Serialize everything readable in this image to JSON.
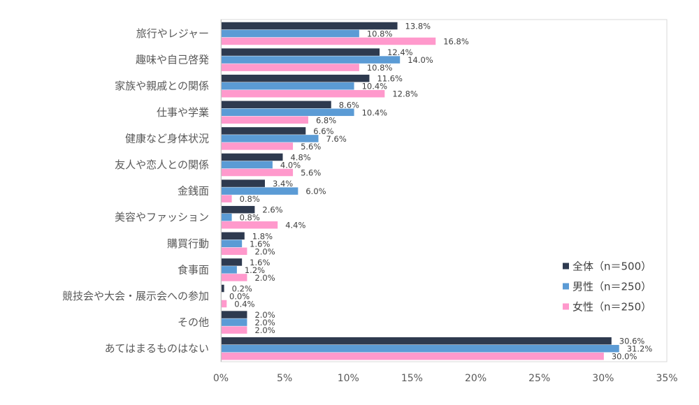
{
  "chart_data": {
    "type": "bar",
    "orientation": "horizontal",
    "categories": [
      "旅行やレジャー",
      "趣味や自己啓発",
      "家族や親戚との関係",
      "仕事や学業",
      "健康など身体状況",
      "友人や恋人との関係",
      "金銭面",
      "美容やファッション",
      "購買行動",
      "食事面",
      "競技会や大会・展示会への参加",
      "その他",
      "あてはまるものはない"
    ],
    "series": [
      {
        "name": "全体（n＝500）",
        "color": "#2e3a4f",
        "values": [
          13.8,
          12.4,
          11.6,
          8.6,
          6.6,
          4.8,
          3.4,
          2.6,
          1.8,
          1.6,
          0.2,
          2.0,
          30.6
        ],
        "labels": [
          "13.8%",
          "12.4%",
          "11.6%",
          "8.6%",
          "6.6%",
          "4.8%",
          "3.4%",
          "2.6%",
          "1.8%",
          "1.6%",
          "0.2%",
          "2.0%",
          "30.6%"
        ]
      },
      {
        "name": "男性（n＝250）",
        "color": "#5b9bd5",
        "values": [
          10.8,
          14.0,
          10.4,
          10.4,
          7.6,
          4.0,
          6.0,
          0.8,
          1.6,
          1.2,
          0.0,
          2.0,
          31.2
        ],
        "labels": [
          "10.8%",
          "14.0%",
          "10.4%",
          "10.4%",
          "7.6%",
          "4.0%",
          "6.0%",
          "0.8%",
          "1.6%",
          "1.2%",
          "0.0%",
          "2.0%",
          "31.2%"
        ]
      },
      {
        "name": "女性（n＝250）",
        "color": "#ff99cc",
        "values": [
          16.8,
          10.8,
          12.8,
          6.8,
          5.6,
          5.6,
          0.8,
          4.4,
          2.0,
          2.0,
          0.4,
          2.0,
          30.0
        ],
        "labels": [
          "16.8%",
          "10.8%",
          "12.8%",
          "6.8%",
          "5.6%",
          "5.6%",
          "0.8%",
          "4.4%",
          "2.0%",
          "2.0%",
          "0.4%",
          "2.0%",
          "30.0%"
        ]
      }
    ],
    "xlim": [
      0,
      35
    ],
    "xticks": [
      0,
      5,
      10,
      15,
      20,
      25,
      30,
      35
    ],
    "xtick_labels": [
      "0%",
      "5%",
      "10%",
      "15%",
      "20%",
      "25%",
      "30%",
      "35%"
    ],
    "legend_position": "bottom-right",
    "grid": false,
    "title": "",
    "xlabel": "",
    "ylabel": ""
  }
}
